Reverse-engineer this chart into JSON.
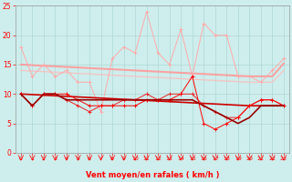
{
  "xlabel": "Vent moyen/en rafales ( km/h )",
  "background_color": "#cdeeed",
  "grid_color": "#b0d8d4",
  "x": [
    0,
    1,
    2,
    3,
    4,
    5,
    6,
    7,
    8,
    9,
    10,
    11,
    12,
    13,
    14,
    15,
    16,
    17,
    18,
    19,
    20,
    21,
    22,
    23
  ],
  "line_pink_jagged": [
    18,
    13,
    15,
    13,
    14,
    12,
    12,
    7,
    16,
    18,
    17,
    24,
    17,
    15,
    21,
    13,
    22,
    20,
    20,
    13,
    13,
    12,
    14,
    16
  ],
  "line_pink_flat_high": [
    15.0,
    14.9,
    14.8,
    14.7,
    14.6,
    14.5,
    14.4,
    14.3,
    14.2,
    14.1,
    14.0,
    13.9,
    13.8,
    13.7,
    13.6,
    13.5,
    13.4,
    13.3,
    13.2,
    13.1,
    13.0,
    13.0,
    13.0,
    15.2
  ],
  "line_pink_flat_low": [
    14.0,
    13.9,
    13.8,
    13.7,
    13.6,
    13.5,
    13.4,
    13.3,
    13.2,
    13.1,
    13.0,
    12.9,
    12.8,
    12.7,
    12.6,
    12.5,
    12.4,
    12.3,
    12.2,
    12.1,
    12.0,
    12.0,
    12.0,
    14.0
  ],
  "line_red_trend": [
    10.0,
    9.9,
    9.8,
    9.7,
    9.6,
    9.5,
    9.4,
    9.3,
    9.2,
    9.1,
    9.0,
    8.9,
    8.8,
    8.7,
    8.6,
    8.5,
    8.4,
    8.3,
    8.2,
    8.1,
    8.0,
    8.0,
    8.0,
    8.0
  ],
  "line_red_jagged": [
    10,
    8,
    10,
    10,
    9,
    8,
    7,
    8,
    8,
    9,
    9,
    10,
    9,
    10,
    10,
    10,
    8,
    7,
    6,
    6,
    8,
    9,
    9,
    8
  ],
  "line_dark_declining": [
    10,
    8,
    10,
    10,
    9,
    9,
    9,
    9,
    9,
    9,
    9,
    9,
    9,
    9,
    9,
    9,
    8,
    7,
    6,
    5,
    6,
    8,
    8,
    8
  ],
  "line_red_jagged2": [
    10,
    8,
    10,
    10,
    10,
    9,
    8,
    8,
    8,
    8,
    8,
    9,
    9,
    9,
    10,
    13,
    5,
    4,
    5,
    6,
    8,
    9,
    9,
    8
  ],
  "ylim": [
    0,
    25
  ],
  "xlim": [
    -0.5,
    23.5
  ]
}
